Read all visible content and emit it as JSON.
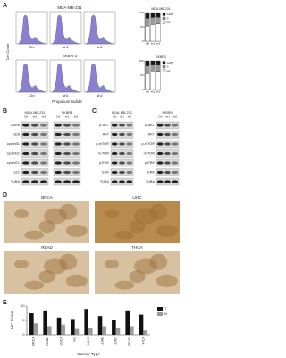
{
  "panel_labels": [
    "A",
    "B",
    "C",
    "D",
    "E"
  ],
  "panel_a": {
    "titles": [
      "MDA-MB-231",
      "SKBR-3"
    ],
    "samples": [
      "Ctrl",
      "sh1",
      "sh2"
    ],
    "y_label": "Cell Count",
    "x_label": "Propidium Iodide",
    "charts": [
      {
        "type": "bar",
        "stacked": true,
        "title": "MDA-MB-231",
        "categories": [
          "Ctrl",
          "sh1",
          "sh2"
        ],
        "series": [
          {
            "name": "G1",
            "color": "#ffffff",
            "values": [
              52,
              58,
              60
            ]
          },
          {
            "name": "S",
            "color": "#9a9a9a",
            "values": [
              28,
              25,
              24
            ]
          },
          {
            "name": "G2/M",
            "color": "#1a1a1a",
            "values": [
              20,
              17,
              16
            ]
          }
        ],
        "ylim": [
          0,
          100
        ],
        "yticks": [
          0,
          50,
          100
        ]
      },
      {
        "type": "bar",
        "stacked": true,
        "title": "SKBR3",
        "categories": [
          "Ctrl",
          "sh1",
          "sh2"
        ],
        "series": [
          {
            "name": "G1",
            "color": "#ffffff",
            "values": [
              55,
              62,
              63
            ]
          },
          {
            "name": "S",
            "color": "#9a9a9a",
            "values": [
              27,
              23,
              22
            ]
          },
          {
            "name": "G2/M",
            "color": "#1a1a1a",
            "values": [
              18,
              15,
              15
            ]
          }
        ],
        "ylim": [
          0,
          100
        ],
        "yticks": [
          0,
          50,
          100
        ]
      }
    ]
  },
  "panel_b": {
    "cell_lines": [
      "MDA-MB-231",
      "SKBR3"
    ],
    "samples": [
      "Ctrl",
      "sh1",
      "sh2"
    ],
    "proteins": [
      "CDK6",
      "cdc6",
      "cyclinB1",
      "cyclinD1",
      "cyclinE1",
      "p21",
      "TUBA"
    ]
  },
  "panel_c": {
    "cell_lines": [
      "MDA-MB-231",
      "SKBR3"
    ],
    "samples": [
      "Ctrl",
      "sh1",
      "sh2"
    ],
    "proteins": [
      "p-AKT",
      "AKT",
      "p-mTOR",
      "m-TOR",
      "p-ERK",
      "ERK",
      "TUBA"
    ]
  },
  "panel_d": {
    "tissues": [
      "BRCA",
      "LIHC",
      "READ",
      "THCA"
    ]
  },
  "panel_e": {
    "type": "bar",
    "y_label": "IHC Score",
    "x_label": "Cancer Type",
    "categories": [
      "BRCA",
      "COAD",
      "ESCA",
      "GC",
      "LIHC",
      "LUAD",
      "LUSC",
      "READ",
      "THCA"
    ],
    "series": [
      {
        "name": "T",
        "color": "#111111",
        "values": [
          7.5,
          8.5,
          6,
          5.5,
          9,
          6.5,
          5,
          8.5,
          7
        ]
      },
      {
        "name": "N",
        "color": "#9a9a9a",
        "values": [
          4,
          3,
          3.5,
          2,
          2.5,
          3,
          2.5,
          3,
          1.5
        ]
      }
    ],
    "ylim": [
      0,
      10
    ],
    "yticks": [
      0,
      5,
      10
    ],
    "legend": "right"
  }
}
